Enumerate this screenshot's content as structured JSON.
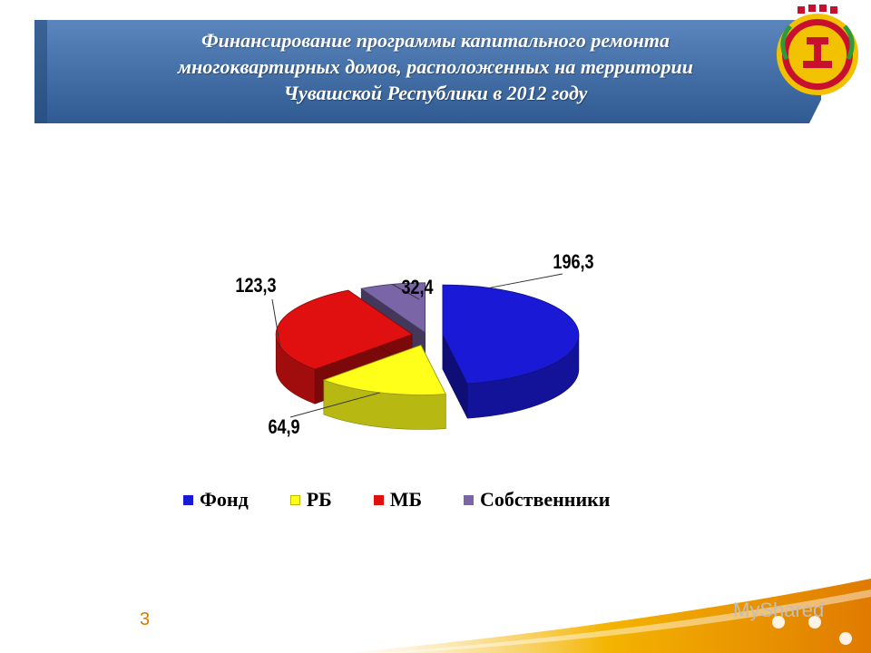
{
  "slide": {
    "title_lines": [
      "Финансирование программы капитального  ремонта",
      "многоквартирных домов, расположенных на территории",
      "Чувашской Республики в 2012 году"
    ],
    "page_number": "3",
    "watermark": "MyShared",
    "colors": {
      "banner": "#3e6aa1",
      "title_text": "#ffffff",
      "page_number": "#d47a00"
    },
    "emblem": "chuvash-republic-emblem-icon"
  },
  "chart_data": {
    "type": "pie",
    "style": "3d-exploded",
    "categories": [
      "Фонд",
      "РБ",
      "МБ",
      "Собственники"
    ],
    "values": [
      196.3,
      64.9,
      123.3,
      32.4
    ],
    "value_labels": [
      "196,3",
      "64,9",
      "123,3",
      "32,4"
    ],
    "colors": [
      "#1a1ad6",
      "#ffff1a",
      "#e01010",
      "#7a65a6"
    ],
    "legend": {
      "position": "bottom",
      "entries": [
        "Фонд",
        "РБ",
        "МБ",
        "Собственники"
      ]
    }
  }
}
